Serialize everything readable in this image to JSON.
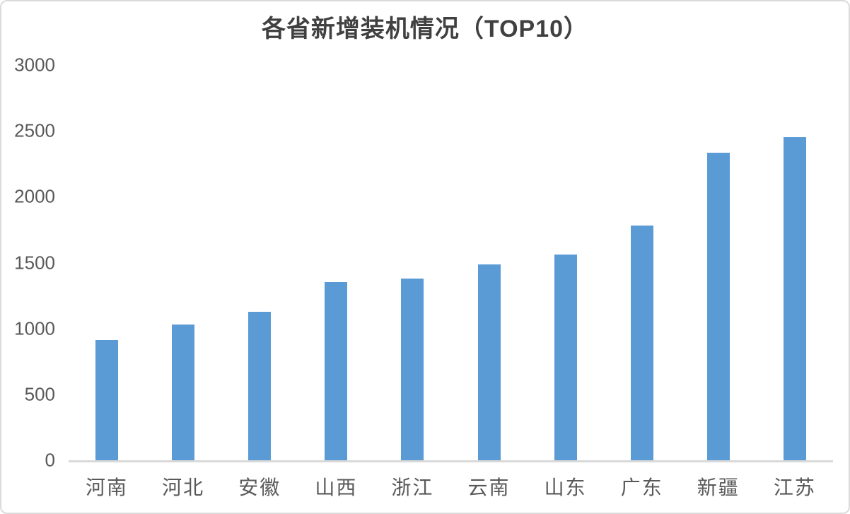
{
  "chart_data": {
    "type": "bar",
    "title": "各省新增装机情况（TOP10）",
    "categories": [
      "河南",
      "河北",
      "安徽",
      "山西",
      "浙江",
      "云南",
      "山东",
      "广东",
      "新疆",
      "江苏"
    ],
    "values": [
      910,
      1030,
      1125,
      1355,
      1380,
      1485,
      1560,
      1780,
      2335,
      2455
    ],
    "xlabel": "",
    "ylabel": "",
    "ylim": [
      0,
      3000
    ],
    "yticks": [
      0,
      500,
      1000,
      1500,
      2000,
      2500,
      3000
    ],
    "grid": false,
    "legend": "none",
    "bar_color": "#5B9BD5"
  },
  "colors": {
    "bar": "#5B9BD5",
    "axis_line": "#D9D9D9",
    "tick_label": "#595959",
    "title": "#404040",
    "card_border": "#DBDBDB",
    "background": "#FFFFFF"
  }
}
